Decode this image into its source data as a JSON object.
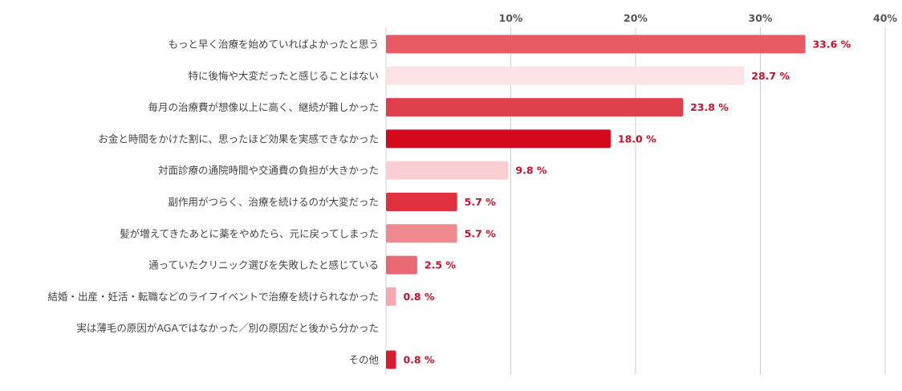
{
  "chart_data": {
    "type": "bar",
    "orientation": "horizontal",
    "categories": [
      "もっと早く治療を始めていればよかったと思う",
      "特に後悔や大変だったと感じることはない",
      "毎月の治療費が想像以上に高く、継続が難しかった",
      "お金と時間をかけた割に、思ったほど効果を実感できなかった",
      "対面診療の通院時間や交通費の負担が大きかった",
      "副作用がつらく、治療を続けるのが大変だった",
      "髪が増えてきたあとに薬をやめたら、元に戻ってしまった",
      "通っていたクリニック選びを失敗したと感じている",
      "結婚・出産・妊活・転職などのライフイベントで治療を続けられなかった",
      "実は薄毛の原因がAGAではなかった／別の原因だと後から分かった",
      "その他"
    ],
    "values": [
      33.6,
      28.7,
      23.8,
      18.0,
      9.8,
      5.7,
      5.7,
      2.5,
      0.8,
      null,
      0.8
    ],
    "value_labels": [
      "33.6 %",
      "28.7 %",
      "23.8 %",
      "18.0 %",
      "9.8 %",
      "5.7 %",
      "5.7 %",
      "2.5 %",
      "0.8 %",
      "",
      "0.8 %"
    ],
    "bar_colors": [
      "#e85a64",
      "#fce4e6",
      "#e0404b",
      "#d40a1c",
      "#f9cfd3",
      "#e0323e",
      "#ef8a91",
      "#e96a72",
      "#f4aab0",
      "#ffffff",
      "#d81e2c"
    ],
    "xlim": [
      0,
      40
    ],
    "ticks": [
      10,
      20,
      30,
      40
    ],
    "tick_labels": [
      "10%",
      "20%",
      "30%",
      "40%"
    ],
    "grid": true,
    "tick_position": "top",
    "title": "",
    "xlabel": "",
    "ylabel": ""
  }
}
